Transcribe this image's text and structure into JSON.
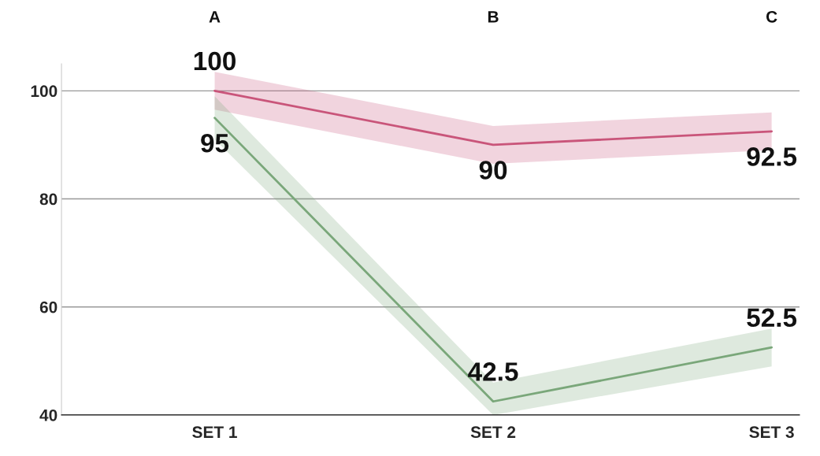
{
  "chart_data": {
    "type": "line",
    "categories": [
      "SET 1",
      "SET 2",
      "SET 3"
    ],
    "series": [
      {
        "color": "#c9557a",
        "values": [
          100,
          90,
          92.5
        ],
        "lower": [
          96.5,
          86.5,
          89
        ],
        "upper": [
          103.5,
          93.5,
          96
        ]
      },
      {
        "color": "#7aa77a",
        "values": [
          95,
          42.5,
          52.5
        ],
        "lower": [
          91,
          40,
          49
        ],
        "upper": [
          99,
          46,
          56
        ]
      }
    ],
    "ylim": [
      40,
      105
    ],
    "yticks": [
      40,
      60,
      80,
      100
    ],
    "grid": "y",
    "data_labels": true,
    "marker": "none",
    "line_style": "solid",
    "annotations": [
      "A",
      "B",
      "C"
    ]
  }
}
